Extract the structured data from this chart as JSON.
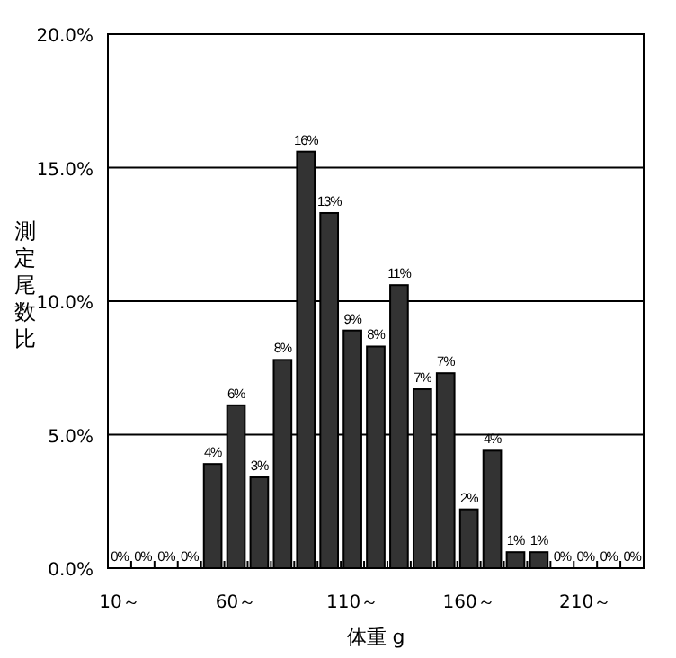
{
  "chart_data": {
    "type": "bar",
    "xlabel": "体重 g",
    "ylabel": "測定尾数比",
    "categories": [
      "10～",
      null,
      null,
      null,
      null,
      "60～",
      null,
      null,
      null,
      null,
      "110～",
      null,
      null,
      null,
      null,
      "160～",
      null,
      null,
      null,
      null,
      "210～",
      null,
      null
    ],
    "values": [
      0,
      0,
      0,
      0,
      3.9,
      6.1,
      3.4,
      7.8,
      15.6,
      13.3,
      8.9,
      8.3,
      10.6,
      6.7,
      7.3,
      2.2,
      4.4,
      0.6,
      0.6,
      0,
      0,
      0,
      0
    ],
    "value_labels": [
      "0%",
      "0%",
      "0%",
      "0%",
      "4%",
      "6%",
      "3%",
      "8%",
      "16%",
      "13%",
      "9%",
      "8%",
      "11%",
      "7%",
      "7%",
      "2%",
      "4%",
      "1%",
      "1%",
      "0%",
      "0%",
      "0%",
      "0%"
    ],
    "color": "#333333",
    "ylim": [
      0,
      20
    ],
    "yticks": [
      {
        "value": 0,
        "label": "0.0%"
      },
      {
        "value": 5,
        "label": "5.0%"
      },
      {
        "value": 10,
        "label": "10.0%"
      },
      {
        "value": 15,
        "label": "15.0%"
      },
      {
        "value": 20,
        "label": "20.0%"
      }
    ],
    "grid": "y"
  }
}
